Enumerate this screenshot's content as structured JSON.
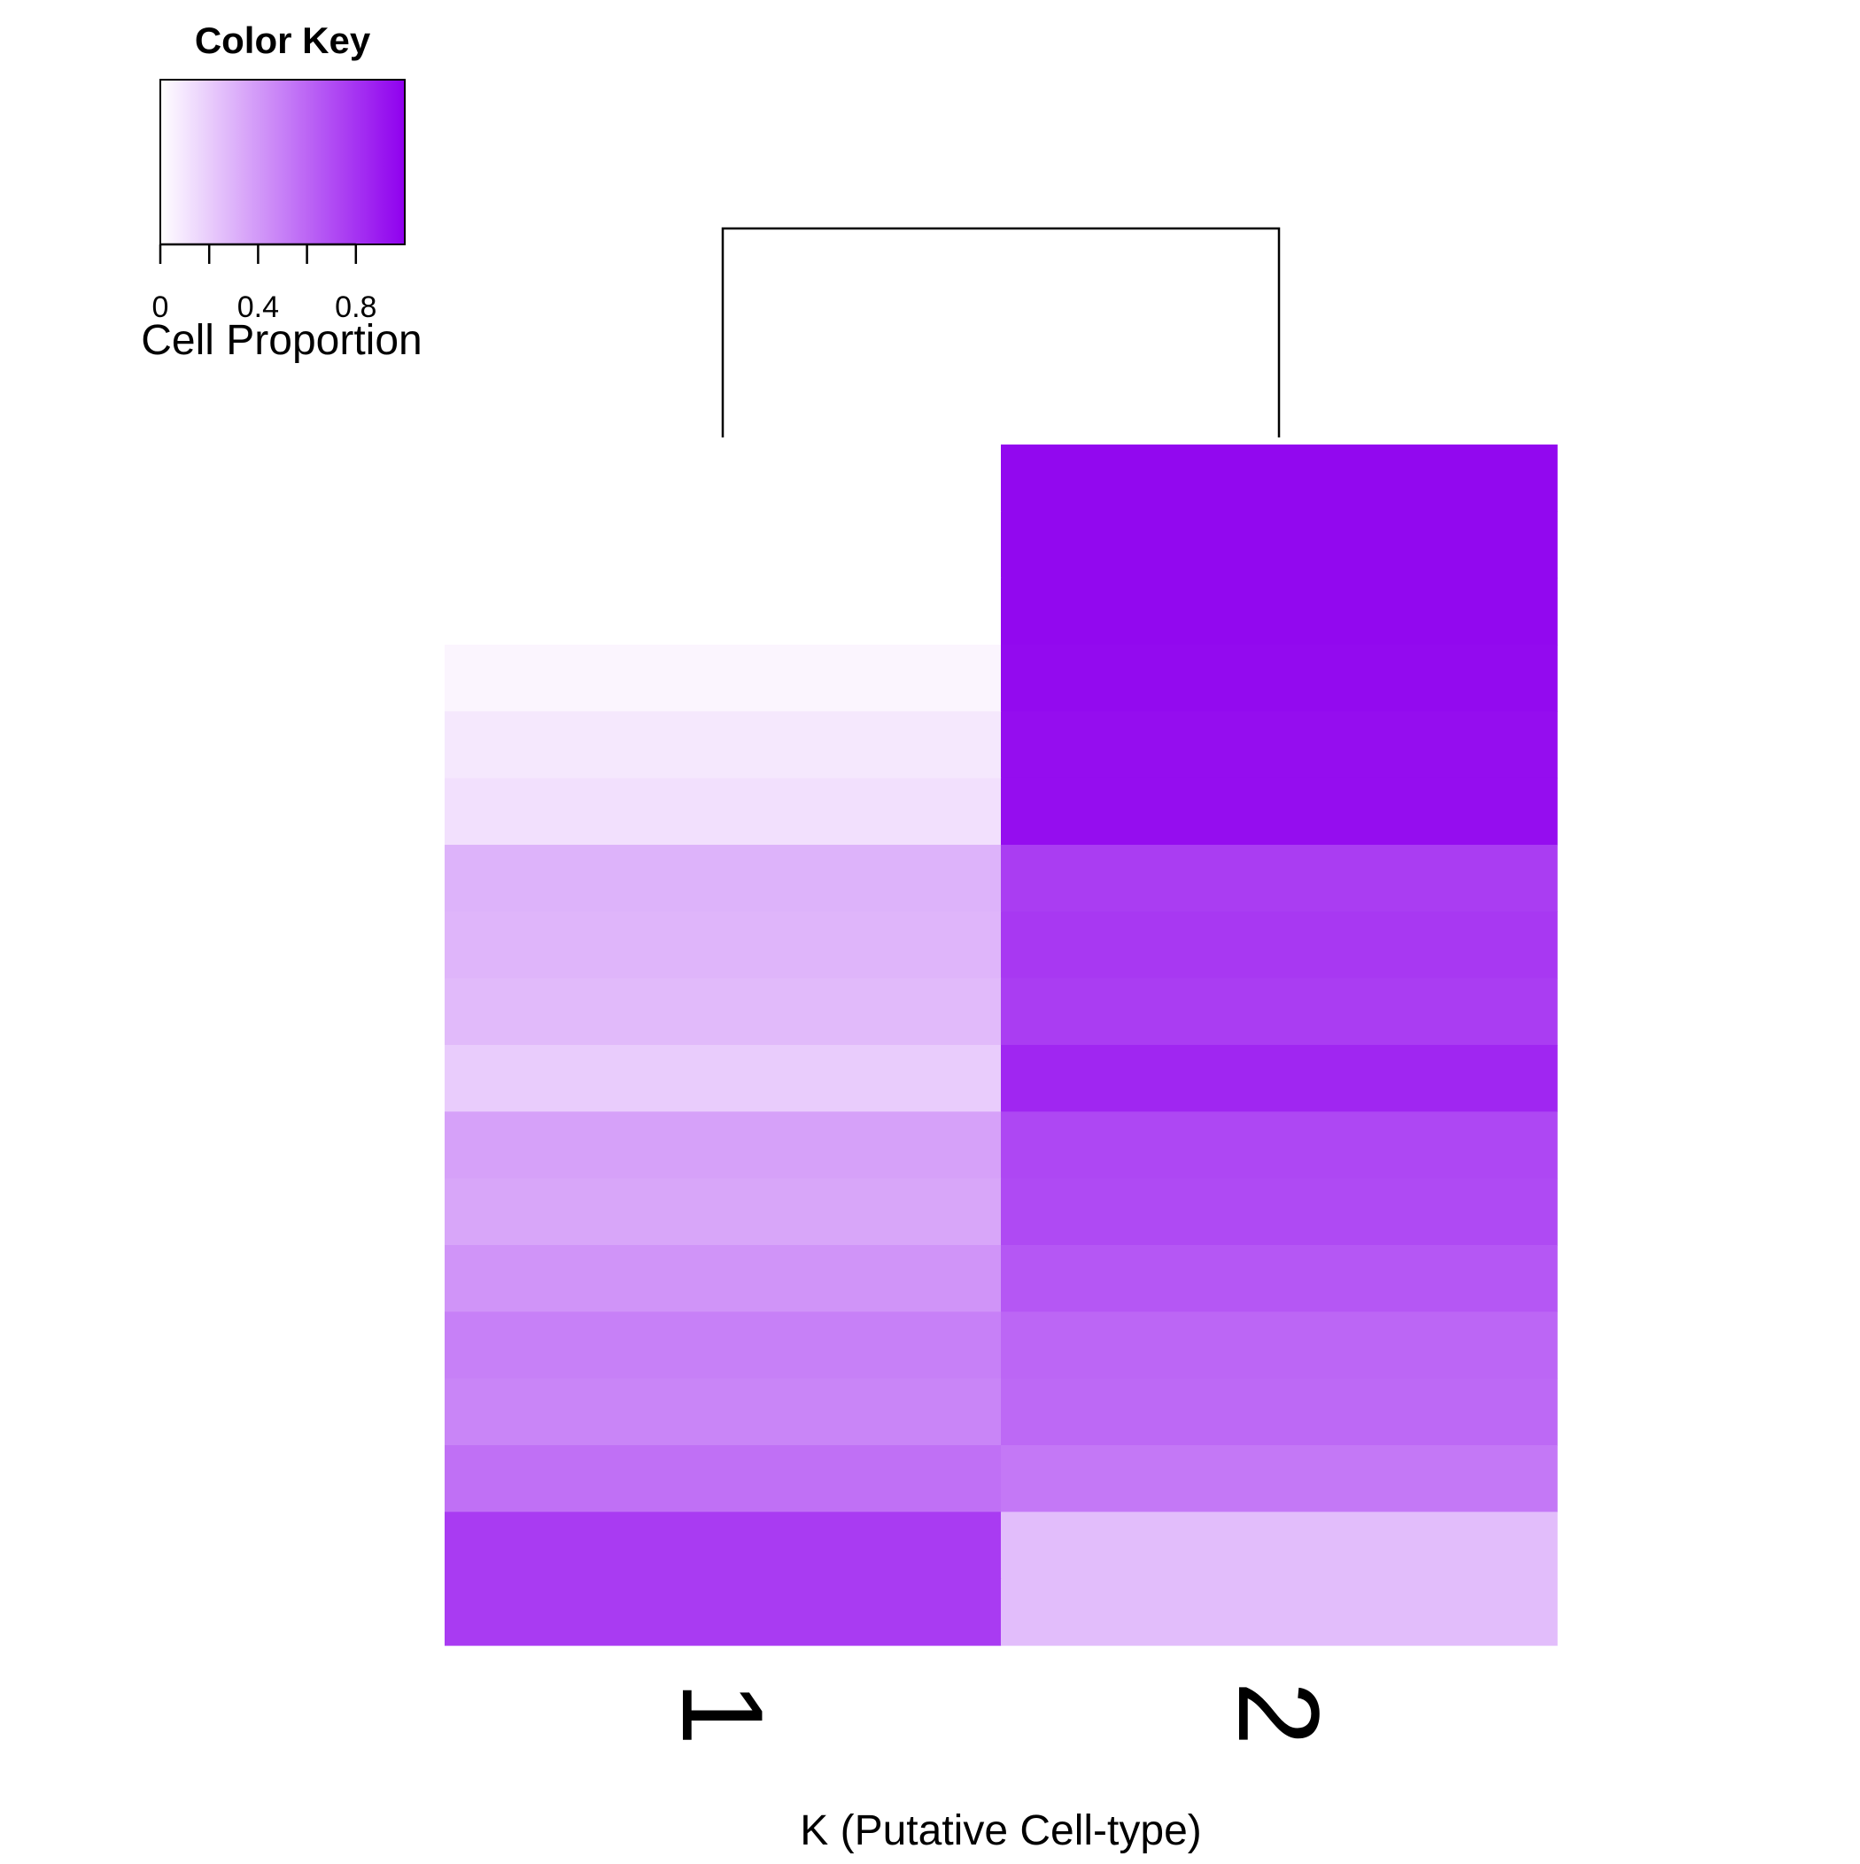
{
  "chart_data": {
    "type": "heatmap",
    "title": "",
    "xlabel": "K (Putative Cell-type)",
    "ylabel": "",
    "categories": [
      "1",
      "2"
    ],
    "rows": 18,
    "values": [
      [
        0.0,
        0.97
      ],
      [
        0.0,
        0.97
      ],
      [
        0.0,
        0.97
      ],
      [
        0.04,
        0.96
      ],
      [
        0.09,
        0.95
      ],
      [
        0.12,
        0.95
      ],
      [
        0.3,
        0.76
      ],
      [
        0.29,
        0.78
      ],
      [
        0.27,
        0.76
      ],
      [
        0.2,
        0.85
      ],
      [
        0.37,
        0.72
      ],
      [
        0.35,
        0.71
      ],
      [
        0.42,
        0.66
      ],
      [
        0.5,
        0.6
      ],
      [
        0.48,
        0.59
      ],
      [
        0.56,
        0.53
      ],
      [
        0.77,
        0.26
      ],
      [
        0.77,
        0.26
      ]
    ],
    "color_scale": {
      "low": "#ffffff",
      "high": "#8f00ee",
      "range": [
        0,
        1
      ]
    },
    "grid": false,
    "dendrogram": "columns",
    "color_key": {
      "title": "Color Key",
      "label": "Cell Proportion",
      "tick_labels": [
        "0",
        "0.4",
        "0.8"
      ],
      "tick_values": [
        0,
        0.2,
        0.4,
        0.6,
        0.8
      ],
      "labeled_ticks": [
        0,
        0.4,
        0.8
      ]
    },
    "legend_position": "top-left"
  }
}
